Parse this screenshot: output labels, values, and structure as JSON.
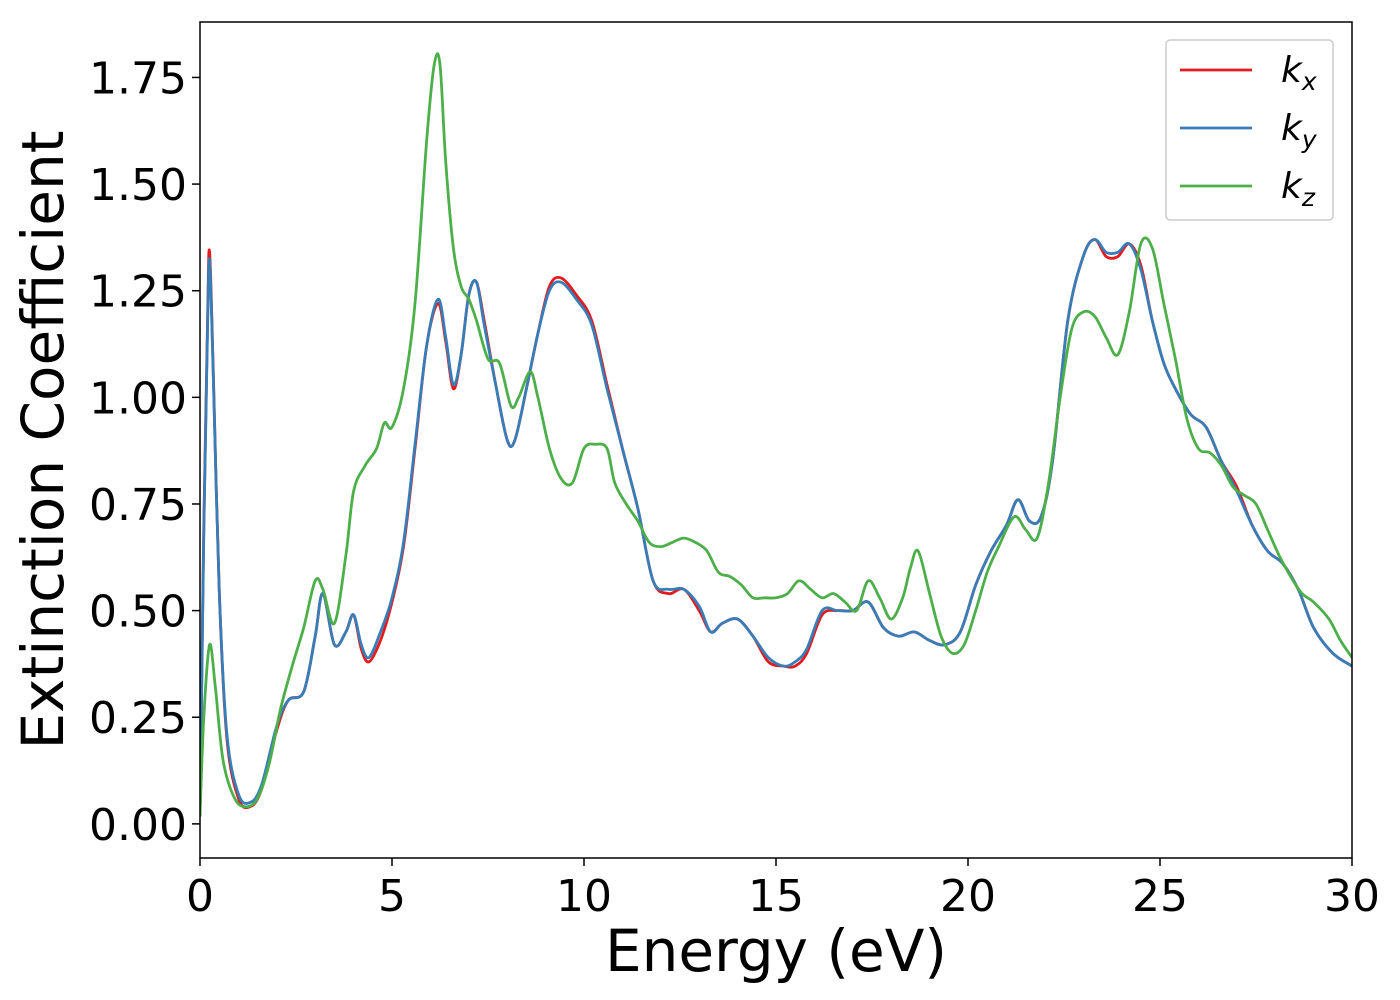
{
  "chart_data": {
    "type": "line",
    "xlabel": "Energy (eV)",
    "ylabel": "Extinction Coefficient",
    "xlim": [
      0,
      30
    ],
    "ylim": [
      -0.08,
      1.88
    ],
    "xticks": [
      0,
      5,
      10,
      15,
      20,
      25,
      30
    ],
    "xtick_labels": [
      "0",
      "5",
      "10",
      "15",
      "20",
      "25",
      "30"
    ],
    "yticks": [
      0,
      0.25,
      0.5,
      0.75,
      1.0,
      1.25,
      1.5,
      1.75
    ],
    "ytick_labels": [
      "0.00",
      "0.25",
      "0.50",
      "0.75",
      "1.00",
      "1.25",
      "1.50",
      "1.75"
    ],
    "grid": false,
    "legend": {
      "position": "top-right",
      "entries": [
        {
          "base": "k",
          "sub": "x",
          "color": "#e41a1c"
        },
        {
          "base": "k",
          "sub": "y",
          "color": "#377eb8"
        },
        {
          "base": "k",
          "sub": "z",
          "color": "#4daf4a"
        }
      ]
    },
    "series": [
      {
        "name": "k_x",
        "color": "#e41a1c",
        "x": [
          0,
          0.1,
          0.2,
          0.25,
          0.35,
          0.5,
          0.7,
          1.0,
          1.3,
          1.6,
          2.0,
          2.3,
          2.7,
          3.0,
          3.2,
          3.5,
          3.8,
          4.0,
          4.2,
          4.4,
          4.7,
          5.0,
          5.3,
          5.6,
          5.9,
          6.2,
          6.4,
          6.6,
          6.8,
          7.0,
          7.2,
          7.4,
          7.7,
          8.0,
          8.2,
          8.5,
          8.8,
          9.1,
          9.4,
          9.8,
          10.2,
          10.6,
          11.0,
          11.4,
          11.8,
          12.2,
          12.6,
          13.0,
          13.3,
          13.6,
          14.0,
          14.4,
          14.8,
          15.2,
          15.5,
          15.8,
          16.2,
          16.6,
          17.0,
          17.4,
          17.8,
          18.2,
          18.6,
          19.0,
          19.4,
          19.8,
          20.2,
          20.6,
          21.0,
          21.3,
          21.6,
          21.9,
          22.2,
          22.6,
          23.0,
          23.3,
          23.6,
          23.9,
          24.2,
          24.5,
          24.8,
          25.1,
          25.4,
          25.8,
          26.2,
          26.6,
          27.0,
          27.4,
          27.8,
          28.2,
          28.6,
          29.0,
          29.5,
          30.0
        ],
        "y": [
          0.02,
          0.7,
          1.2,
          1.34,
          1.05,
          0.55,
          0.2,
          0.06,
          0.04,
          0.08,
          0.22,
          0.29,
          0.31,
          0.44,
          0.54,
          0.42,
          0.45,
          0.49,
          0.41,
          0.38,
          0.43,
          0.52,
          0.65,
          0.88,
          1.12,
          1.22,
          1.13,
          1.02,
          1.1,
          1.24,
          1.27,
          1.18,
          1.03,
          0.9,
          0.9,
          1.02,
          1.15,
          1.26,
          1.28,
          1.24,
          1.18,
          1.03,
          0.88,
          0.74,
          0.57,
          0.54,
          0.55,
          0.5,
          0.45,
          0.47,
          0.48,
          0.44,
          0.38,
          0.37,
          0.37,
          0.4,
          0.49,
          0.5,
          0.5,
          0.52,
          0.46,
          0.44,
          0.45,
          0.43,
          0.42,
          0.45,
          0.56,
          0.64,
          0.7,
          0.76,
          0.71,
          0.72,
          0.85,
          1.18,
          1.33,
          1.37,
          1.33,
          1.33,
          1.36,
          1.31,
          1.18,
          1.08,
          1.02,
          0.96,
          0.93,
          0.85,
          0.79,
          0.7,
          0.64,
          0.61,
          0.55,
          0.46,
          0.4,
          0.37
        ]
      },
      {
        "name": "k_y",
        "color": "#377eb8",
        "x": [
          0,
          0.1,
          0.2,
          0.25,
          0.35,
          0.5,
          0.7,
          1.0,
          1.3,
          1.6,
          2.0,
          2.3,
          2.7,
          3.0,
          3.2,
          3.5,
          3.8,
          4.0,
          4.2,
          4.4,
          4.7,
          5.0,
          5.3,
          5.6,
          5.9,
          6.2,
          6.4,
          6.6,
          6.8,
          7.0,
          7.2,
          7.4,
          7.7,
          8.0,
          8.2,
          8.5,
          8.8,
          9.1,
          9.4,
          9.8,
          10.2,
          10.6,
          11.0,
          11.4,
          11.8,
          12.2,
          12.6,
          13.0,
          13.3,
          13.6,
          14.0,
          14.4,
          14.8,
          15.2,
          15.5,
          15.8,
          16.2,
          16.6,
          17.0,
          17.4,
          17.8,
          18.2,
          18.6,
          19.0,
          19.4,
          19.8,
          20.2,
          20.6,
          21.0,
          21.3,
          21.6,
          21.9,
          22.2,
          22.6,
          23.0,
          23.3,
          23.6,
          23.9,
          24.2,
          24.5,
          24.8,
          25.1,
          25.4,
          25.8,
          26.2,
          26.6,
          27.0,
          27.4,
          27.8,
          28.2,
          28.6,
          29.0,
          29.5,
          30.0
        ],
        "y": [
          0.02,
          0.68,
          1.18,
          1.32,
          1.04,
          0.55,
          0.21,
          0.07,
          0.05,
          0.09,
          0.23,
          0.29,
          0.31,
          0.44,
          0.54,
          0.42,
          0.45,
          0.49,
          0.42,
          0.39,
          0.45,
          0.53,
          0.66,
          0.89,
          1.12,
          1.23,
          1.14,
          1.03,
          1.1,
          1.24,
          1.27,
          1.17,
          1.03,
          0.9,
          0.9,
          1.02,
          1.15,
          1.25,
          1.27,
          1.23,
          1.17,
          1.02,
          0.88,
          0.74,
          0.57,
          0.55,
          0.55,
          0.51,
          0.45,
          0.47,
          0.48,
          0.44,
          0.39,
          0.37,
          0.38,
          0.41,
          0.5,
          0.5,
          0.5,
          0.52,
          0.46,
          0.44,
          0.45,
          0.43,
          0.42,
          0.45,
          0.56,
          0.64,
          0.7,
          0.76,
          0.71,
          0.72,
          0.85,
          1.18,
          1.33,
          1.37,
          1.34,
          1.34,
          1.36,
          1.3,
          1.18,
          1.08,
          1.02,
          0.96,
          0.93,
          0.85,
          0.78,
          0.7,
          0.64,
          0.61,
          0.55,
          0.46,
          0.4,
          0.37
        ]
      },
      {
        "name": "k_z",
        "color": "#4daf4a",
        "x": [
          0,
          0.1,
          0.25,
          0.4,
          0.6,
          0.9,
          1.2,
          1.5,
          1.8,
          2.1,
          2.4,
          2.7,
          3.0,
          3.2,
          3.5,
          3.8,
          4.0,
          4.3,
          4.6,
          4.8,
          5.0,
          5.3,
          5.6,
          5.9,
          6.1,
          6.25,
          6.4,
          6.6,
          6.8,
          7.0,
          7.2,
          7.5,
          7.8,
          8.1,
          8.3,
          8.6,
          8.8,
          9.1,
          9.4,
          9.7,
          10.0,
          10.3,
          10.6,
          10.8,
          11.1,
          11.4,
          11.7,
          12.0,
          12.3,
          12.6,
          12.9,
          13.2,
          13.5,
          13.8,
          14.1,
          14.4,
          14.7,
          15.0,
          15.3,
          15.6,
          15.9,
          16.2,
          16.5,
          16.8,
          17.1,
          17.4,
          17.7,
          18.0,
          18.3,
          18.5,
          18.7,
          19.0,
          19.3,
          19.6,
          19.9,
          20.2,
          20.5,
          20.8,
          21.2,
          21.5,
          21.8,
          22.1,
          22.4,
          22.7,
          23.0,
          23.3,
          23.6,
          23.9,
          24.2,
          24.5,
          24.8,
          25.1,
          25.4,
          25.7,
          26.0,
          26.3,
          26.6,
          26.9,
          27.2,
          27.5,
          27.8,
          28.1,
          28.4,
          28.7,
          29.0,
          29.4,
          29.7,
          30.0
        ],
        "y": [
          0.02,
          0.25,
          0.42,
          0.32,
          0.15,
          0.06,
          0.04,
          0.06,
          0.14,
          0.27,
          0.37,
          0.46,
          0.57,
          0.55,
          0.47,
          0.63,
          0.78,
          0.84,
          0.88,
          0.94,
          0.93,
          1.02,
          1.22,
          1.6,
          1.78,
          1.78,
          1.55,
          1.35,
          1.26,
          1.23,
          1.18,
          1.09,
          1.08,
          0.98,
          1.0,
          1.06,
          1.0,
          0.88,
          0.81,
          0.8,
          0.88,
          0.89,
          0.88,
          0.8,
          0.75,
          0.71,
          0.66,
          0.65,
          0.66,
          0.67,
          0.66,
          0.64,
          0.59,
          0.58,
          0.56,
          0.53,
          0.53,
          0.53,
          0.54,
          0.57,
          0.55,
          0.53,
          0.54,
          0.52,
          0.5,
          0.57,
          0.53,
          0.48,
          0.53,
          0.6,
          0.64,
          0.54,
          0.44,
          0.4,
          0.42,
          0.5,
          0.59,
          0.65,
          0.72,
          0.69,
          0.67,
          0.8,
          1.0,
          1.16,
          1.2,
          1.19,
          1.14,
          1.1,
          1.2,
          1.36,
          1.35,
          1.22,
          1.09,
          0.95,
          0.88,
          0.87,
          0.84,
          0.79,
          0.77,
          0.75,
          0.69,
          0.63,
          0.58,
          0.54,
          0.52,
          0.48,
          0.43,
          0.39
        ]
      }
    ]
  }
}
